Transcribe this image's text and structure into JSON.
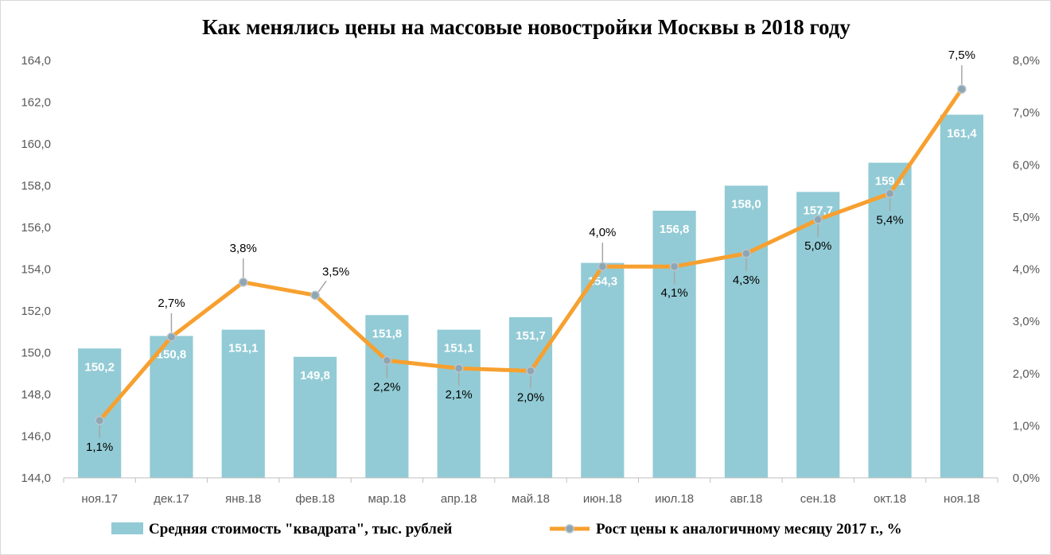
{
  "chart_data": {
    "type": "bar+line",
    "title": "Как менялись цены на массовые новостройки Москвы в 2018 году",
    "categories": [
      "ноя.17",
      "дек.17",
      "янв.18",
      "фев.18",
      "мар.18",
      "апр.18",
      "май.18",
      "июн.18",
      "июл.18",
      "авг.18",
      "сен.18",
      "окт.18",
      "ноя.18"
    ],
    "series": [
      {
        "name": "Средняя стоимость \"квадрата\", тыс. рублей",
        "type": "bar",
        "axis": "left",
        "color": "#92cbd5",
        "values": [
          150.2,
          150.8,
          151.1,
          149.8,
          151.8,
          151.1,
          151.7,
          154.3,
          156.8,
          158.0,
          157.7,
          159.1,
          161.4
        ],
        "labels": [
          "150,2",
          "150,8",
          "151,1",
          "149,8",
          "151,8",
          "151,1",
          "151,7",
          "154,3",
          "156,8",
          "158,0",
          "157,7",
          "159,1",
          "161,4"
        ]
      },
      {
        "name": "Рост цены к аналогичному месяцу 2017 г., %",
        "type": "line",
        "axis": "right",
        "color": "#f7a030",
        "marker_color": "#8fa5b2",
        "values": [
          1.1,
          2.7,
          3.75,
          3.5,
          2.25,
          2.1,
          2.05,
          4.05,
          4.05,
          4.3,
          4.95,
          5.45,
          7.45
        ],
        "labels": [
          "1,1%",
          "2,7%",
          "3,8%",
          "3,5%",
          "2,2%",
          "2,1%",
          "2,0%",
          "4,0%",
          "4,1%",
          "4,3%",
          "5,0%",
          "5,4%",
          "7,5%"
        ],
        "label_side": [
          "below",
          "above",
          "above",
          "above-right",
          "below",
          "below",
          "below",
          "above",
          "below",
          "below",
          "below",
          "below",
          "above"
        ]
      }
    ],
    "y_left": {
      "min": 144,
      "max": 164,
      "step": 2,
      "tick_labels": [
        "144,0",
        "146,0",
        "148,0",
        "150,0",
        "152,0",
        "154,0",
        "156,0",
        "158,0",
        "160,0",
        "162,0",
        "164,0"
      ]
    },
    "y_right": {
      "min": 0,
      "max": 8,
      "step": 1,
      "tick_labels": [
        "0,0%",
        "1,0%",
        "2,0%",
        "3,0%",
        "4,0%",
        "5,0%",
        "6,0%",
        "7,0%",
        "8,0%"
      ]
    },
    "grid": false,
    "legend_position": "bottom"
  }
}
